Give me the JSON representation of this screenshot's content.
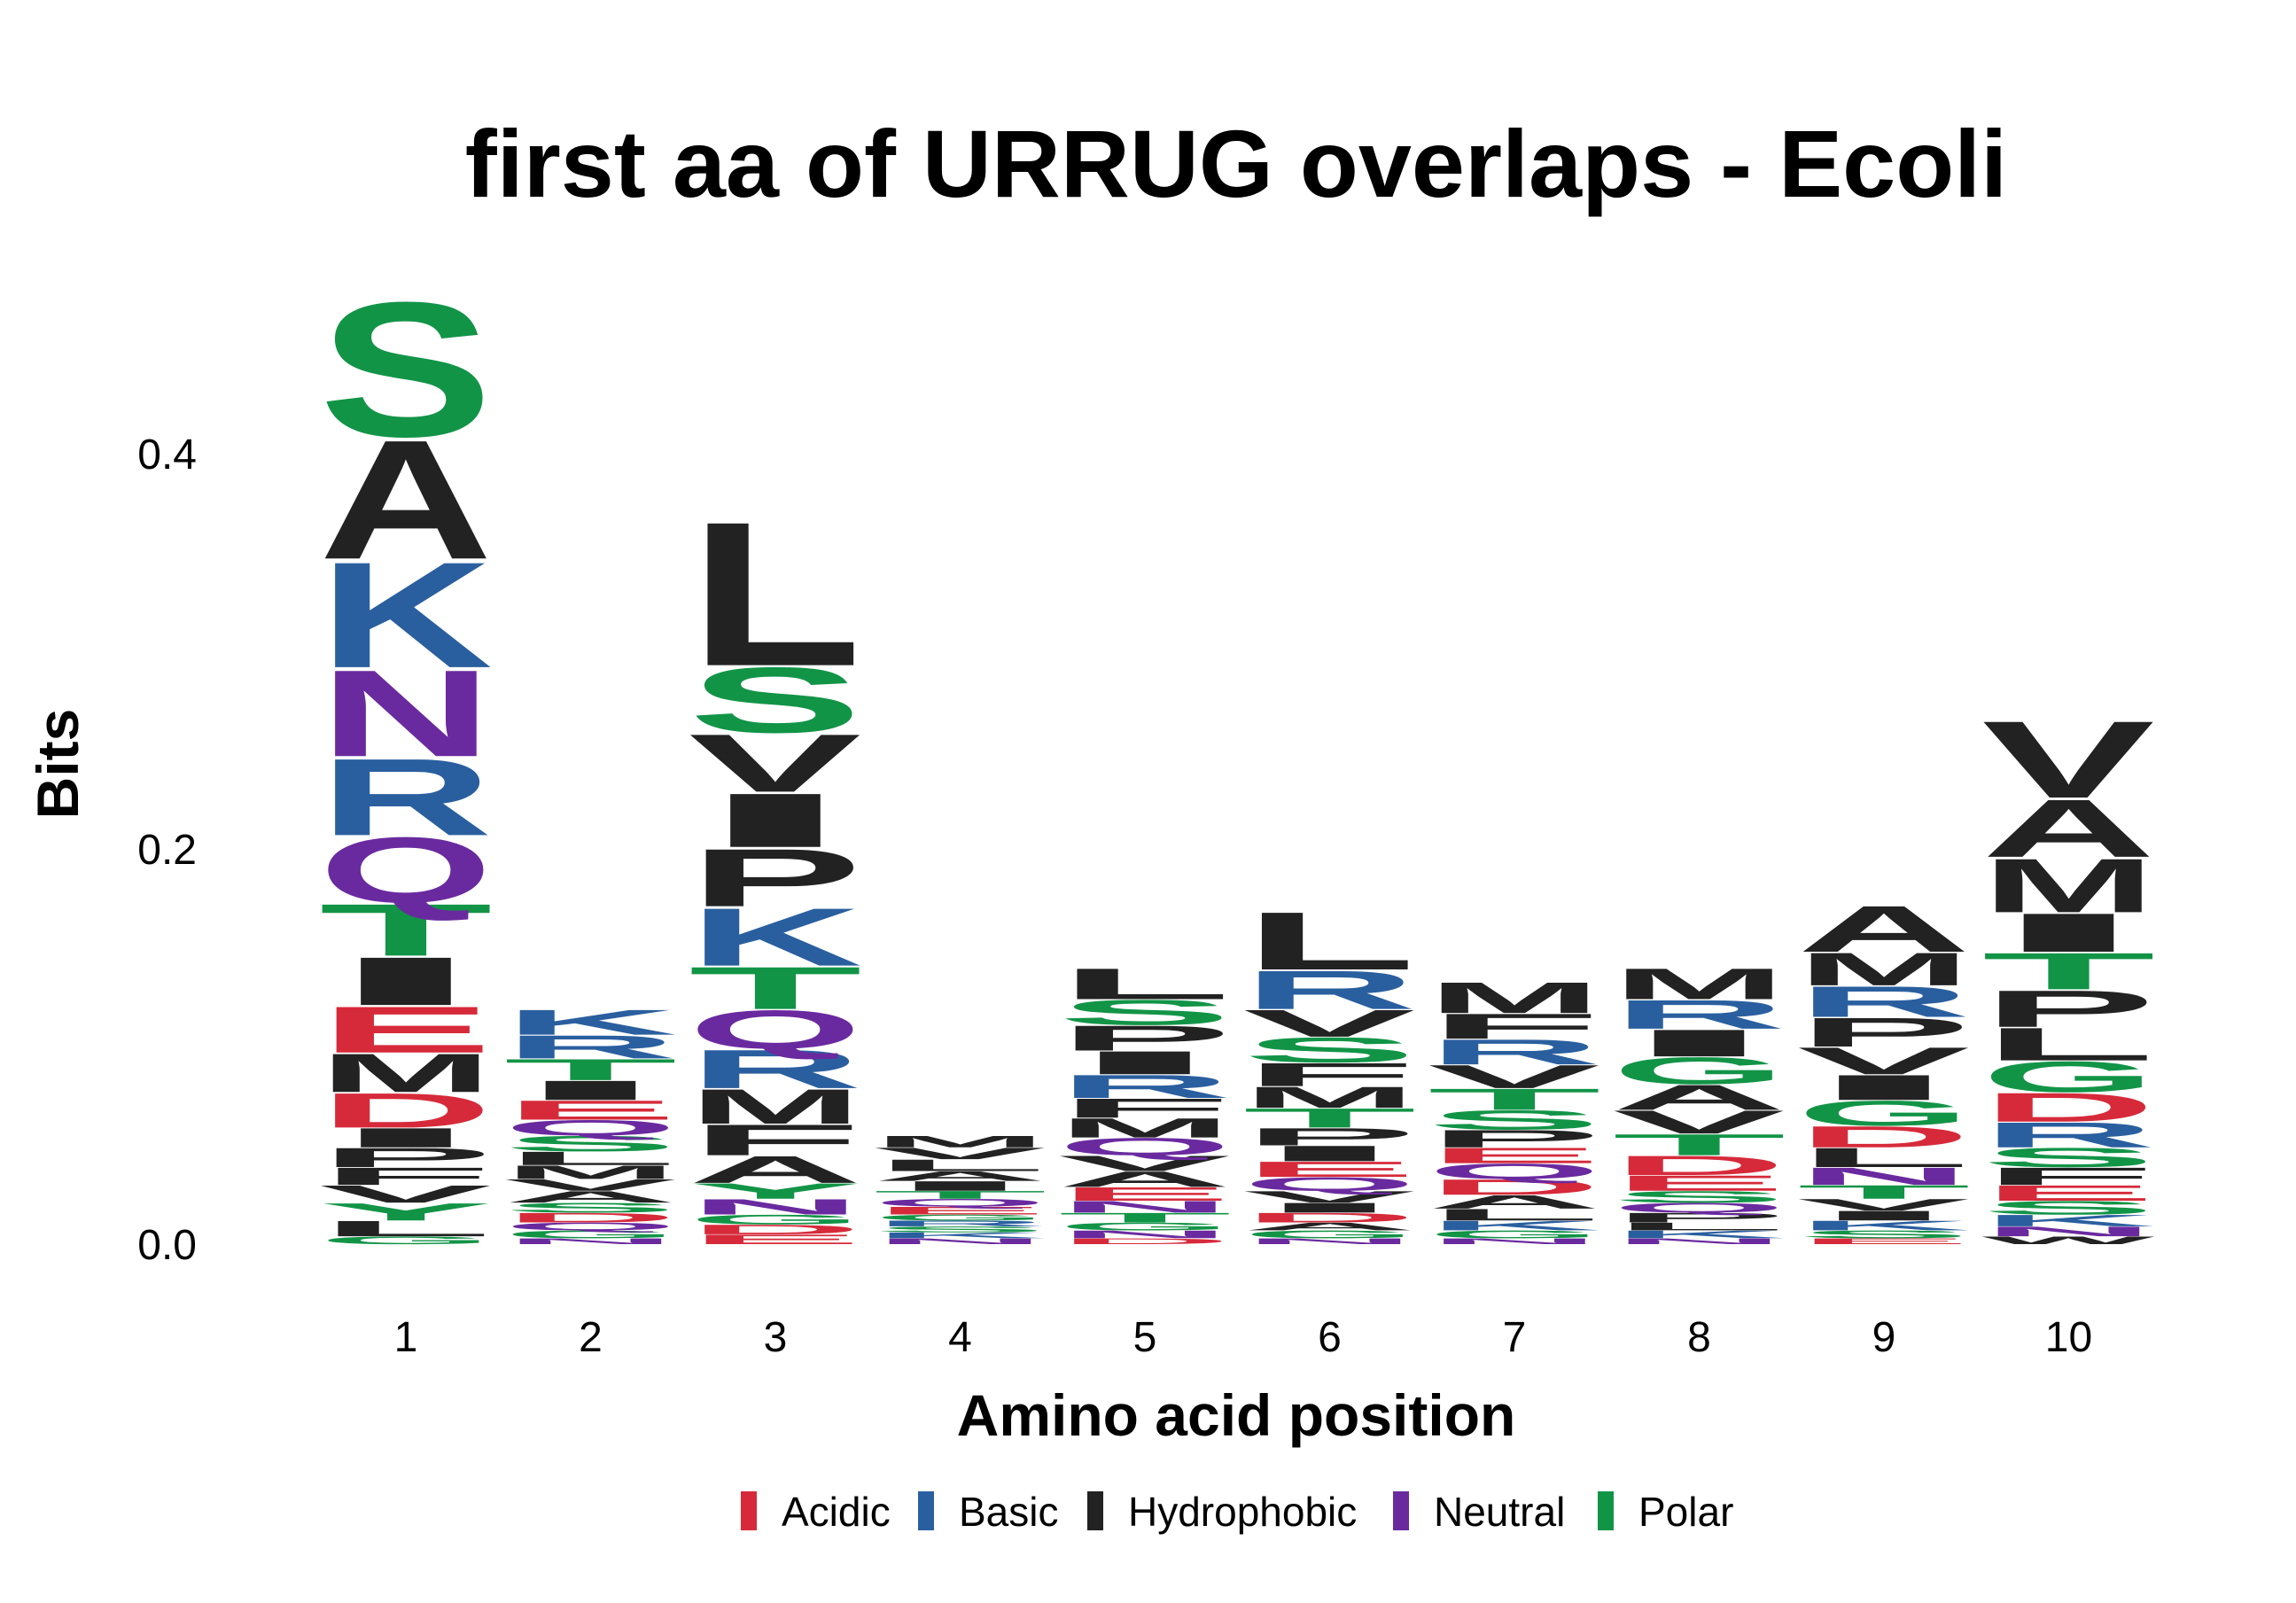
{
  "chart_data": {
    "type": "sequence-logo",
    "title": "first aa of URRUG overlaps - Ecoli",
    "xlabel": "Amino acid position",
    "ylabel": "Bits",
    "ylim": [
      0,
      0.5
    ],
    "yticks": [
      "0.0",
      "0.2",
      "0.4"
    ],
    "ytick_values": [
      0.0,
      0.2,
      0.4
    ],
    "categories": [
      "1",
      "2",
      "3",
      "4",
      "5",
      "6",
      "7",
      "8",
      "9",
      "10"
    ],
    "colors": {
      "Acidic": "#d62a3a",
      "Basic": "#2a5f9f",
      "Hydrophobic": "#222222",
      "Neutral": "#6a2a9f",
      "Polar": "#129447"
    },
    "legend": [
      "Acidic",
      "Basic",
      "Hydrophobic",
      "Neutral",
      "Polar"
    ],
    "legend_position": "bottom",
    "positions": [
      {
        "position": "1",
        "letters": [
          {
            "aa": "G",
            "bits": 0.004,
            "group": "Polar"
          },
          {
            "aa": "L",
            "bits": 0.008,
            "group": "Hydrophobic"
          },
          {
            "aa": "Y",
            "bits": 0.009,
            "group": "Polar"
          },
          {
            "aa": "V",
            "bits": 0.009,
            "group": "Hydrophobic"
          },
          {
            "aa": "F",
            "bits": 0.009,
            "group": "Hydrophobic"
          },
          {
            "aa": "P",
            "bits": 0.01,
            "group": "Hydrophobic"
          },
          {
            "aa": "I",
            "bits": 0.01,
            "group": "Hydrophobic"
          },
          {
            "aa": "D",
            "bits": 0.018,
            "group": "Acidic"
          },
          {
            "aa": "M",
            "bits": 0.02,
            "group": "Hydrophobic"
          },
          {
            "aa": "E",
            "bits": 0.024,
            "group": "Acidic"
          },
          {
            "aa": "I",
            "bits": 0.025,
            "group": "Hydrophobic"
          },
          {
            "aa": "T",
            "bits": 0.027,
            "group": "Polar"
          },
          {
            "aa": "Q",
            "bits": 0.034,
            "group": "Neutral"
          },
          {
            "aa": "R",
            "bits": 0.04,
            "group": "Basic"
          },
          {
            "aa": "N",
            "bits": 0.045,
            "group": "Neutral"
          },
          {
            "aa": "K",
            "bits": 0.055,
            "group": "Basic"
          },
          {
            "aa": "A",
            "bits": 0.062,
            "group": "Hydrophobic"
          },
          {
            "aa": "S",
            "bits": 0.07,
            "group": "Polar"
          }
        ]
      },
      {
        "position": "2",
        "letters": [
          {
            "aa": "N",
            "bits": 0.003,
            "group": "Neutral"
          },
          {
            "aa": "G",
            "bits": 0.004,
            "group": "Polar"
          },
          {
            "aa": "Q",
            "bits": 0.004,
            "group": "Neutral"
          },
          {
            "aa": "D",
            "bits": 0.005,
            "group": "Acidic"
          },
          {
            "aa": "S",
            "bits": 0.005,
            "group": "Polar"
          },
          {
            "aa": "A",
            "bits": 0.006,
            "group": "Hydrophobic"
          },
          {
            "aa": "V",
            "bits": 0.006,
            "group": "Hydrophobic"
          },
          {
            "aa": "M",
            "bits": 0.007,
            "group": "Hydrophobic"
          },
          {
            "aa": "L",
            "bits": 0.007,
            "group": "Hydrophobic"
          },
          {
            "aa": "S",
            "bits": 0.008,
            "group": "Polar"
          },
          {
            "aa": "Q",
            "bits": 0.008,
            "group": "Neutral"
          },
          {
            "aa": "E",
            "bits": 0.01,
            "group": "Acidic"
          },
          {
            "aa": "I",
            "bits": 0.01,
            "group": "Hydrophobic"
          },
          {
            "aa": "T",
            "bits": 0.011,
            "group": "Polar"
          },
          {
            "aa": "R",
            "bits": 0.012,
            "group": "Basic"
          },
          {
            "aa": "K",
            "bits": 0.013,
            "group": "Basic"
          }
        ]
      },
      {
        "position": "3",
        "letters": [
          {
            "aa": "E",
            "bits": 0.005,
            "group": "Acidic"
          },
          {
            "aa": "D",
            "bits": 0.005,
            "group": "Acidic"
          },
          {
            "aa": "G",
            "bits": 0.005,
            "group": "Polar"
          },
          {
            "aa": "N",
            "bits": 0.008,
            "group": "Neutral"
          },
          {
            "aa": "Y",
            "bits": 0.008,
            "group": "Polar"
          },
          {
            "aa": "A",
            "bits": 0.014,
            "group": "Hydrophobic"
          },
          {
            "aa": "F",
            "bits": 0.016,
            "group": "Hydrophobic"
          },
          {
            "aa": "M",
            "bits": 0.018,
            "group": "Hydrophobic"
          },
          {
            "aa": "R",
            "bits": 0.02,
            "group": "Basic"
          },
          {
            "aa": "Q",
            "bits": 0.02,
            "group": "Neutral"
          },
          {
            "aa": "T",
            "bits": 0.022,
            "group": "Polar"
          },
          {
            "aa": "K",
            "bits": 0.03,
            "group": "Basic"
          },
          {
            "aa": "P",
            "bits": 0.03,
            "group": "Hydrophobic"
          },
          {
            "aa": "I",
            "bits": 0.028,
            "group": "Hydrophobic"
          },
          {
            "aa": "V",
            "bits": 0.03,
            "group": "Hydrophobic"
          },
          {
            "aa": "S",
            "bits": 0.034,
            "group": "Polar"
          },
          {
            "aa": "L",
            "bits": 0.075,
            "group": "Hydrophobic"
          }
        ]
      },
      {
        "position": "4",
        "letters": [
          {
            "aa": "N",
            "bits": 0.003,
            "group": "Neutral"
          },
          {
            "aa": "K",
            "bits": 0.003,
            "group": "Basic"
          },
          {
            "aa": "S",
            "bits": 0.003,
            "group": "Polar"
          },
          {
            "aa": "R",
            "bits": 0.003,
            "group": "Basic"
          },
          {
            "aa": "G",
            "bits": 0.003,
            "group": "Polar"
          },
          {
            "aa": "E",
            "bits": 0.004,
            "group": "Acidic"
          },
          {
            "aa": "Q",
            "bits": 0.004,
            "group": "Neutral"
          },
          {
            "aa": "T",
            "bits": 0.004,
            "group": "Polar"
          },
          {
            "aa": "I",
            "bits": 0.005,
            "group": "Hydrophobic"
          },
          {
            "aa": "A",
            "bits": 0.005,
            "group": "Hydrophobic"
          },
          {
            "aa": "L",
            "bits": 0.006,
            "group": "Hydrophobic"
          },
          {
            "aa": "V",
            "bits": 0.006,
            "group": "Hydrophobic"
          },
          {
            "aa": "M",
            "bits": 0.006,
            "group": "Hydrophobic"
          }
        ]
      },
      {
        "position": "5",
        "letters": [
          {
            "aa": "D",
            "bits": 0.003,
            "group": "Acidic"
          },
          {
            "aa": "N",
            "bits": 0.004,
            "group": "Neutral"
          },
          {
            "aa": "G",
            "bits": 0.004,
            "group": "Polar"
          },
          {
            "aa": "T",
            "bits": 0.005,
            "group": "Polar"
          },
          {
            "aa": "N",
            "bits": 0.006,
            "group": "Neutral"
          },
          {
            "aa": "E",
            "bits": 0.007,
            "group": "Acidic"
          },
          {
            "aa": "A",
            "bits": 0.008,
            "group": "Hydrophobic"
          },
          {
            "aa": "V",
            "bits": 0.008,
            "group": "Hydrophobic"
          },
          {
            "aa": "Q",
            "bits": 0.009,
            "group": "Neutral"
          },
          {
            "aa": "M",
            "bits": 0.01,
            "group": "Hydrophobic"
          },
          {
            "aa": "F",
            "bits": 0.01,
            "group": "Hydrophobic"
          },
          {
            "aa": "R",
            "bits": 0.012,
            "group": "Basic"
          },
          {
            "aa": "I",
            "bits": 0.012,
            "group": "Hydrophobic"
          },
          {
            "aa": "P",
            "bits": 0.013,
            "group": "Hydrophobic"
          },
          {
            "aa": "S",
            "bits": 0.013,
            "group": "Polar"
          },
          {
            "aa": "L",
            "bits": 0.016,
            "group": "Hydrophobic"
          }
        ]
      },
      {
        "position": "6",
        "letters": [
          {
            "aa": "N",
            "bits": 0.003,
            "group": "Neutral"
          },
          {
            "aa": "G",
            "bits": 0.004,
            "group": "Polar"
          },
          {
            "aa": "A",
            "bits": 0.004,
            "group": "Hydrophobic"
          },
          {
            "aa": "D",
            "bits": 0.005,
            "group": "Acidic"
          },
          {
            "aa": "I",
            "bits": 0.005,
            "group": "Hydrophobic"
          },
          {
            "aa": "V",
            "bits": 0.006,
            "group": "Hydrophobic"
          },
          {
            "aa": "Q",
            "bits": 0.007,
            "group": "Neutral"
          },
          {
            "aa": "E",
            "bits": 0.008,
            "group": "Acidic"
          },
          {
            "aa": "I",
            "bits": 0.008,
            "group": "Hydrophobic"
          },
          {
            "aa": "P",
            "bits": 0.009,
            "group": "Hydrophobic"
          },
          {
            "aa": "T",
            "bits": 0.01,
            "group": "Polar"
          },
          {
            "aa": "M",
            "bits": 0.011,
            "group": "Hydrophobic"
          },
          {
            "aa": "F",
            "bits": 0.012,
            "group": "Hydrophobic"
          },
          {
            "aa": "S",
            "bits": 0.013,
            "group": "Polar"
          },
          {
            "aa": "V",
            "bits": 0.014,
            "group": "Hydrophobic"
          },
          {
            "aa": "R",
            "bits": 0.02,
            "group": "Basic"
          },
          {
            "aa": "L",
            "bits": 0.03,
            "group": "Hydrophobic"
          }
        ]
      },
      {
        "position": "7",
        "letters": [
          {
            "aa": "N",
            "bits": 0.003,
            "group": "Neutral"
          },
          {
            "aa": "G",
            "bits": 0.004,
            "group": "Polar"
          },
          {
            "aa": "K",
            "bits": 0.005,
            "group": "Basic"
          },
          {
            "aa": "L",
            "bits": 0.006,
            "group": "Hydrophobic"
          },
          {
            "aa": "A",
            "bits": 0.007,
            "group": "Hydrophobic"
          },
          {
            "aa": "D",
            "bits": 0.008,
            "group": "Acidic"
          },
          {
            "aa": "Q",
            "bits": 0.008,
            "group": "Neutral"
          },
          {
            "aa": "E",
            "bits": 0.008,
            "group": "Acidic"
          },
          {
            "aa": "P",
            "bits": 0.009,
            "group": "Hydrophobic"
          },
          {
            "aa": "S",
            "bits": 0.01,
            "group": "Polar"
          },
          {
            "aa": "T",
            "bits": 0.011,
            "group": "Polar"
          },
          {
            "aa": "V",
            "bits": 0.012,
            "group": "Hydrophobic"
          },
          {
            "aa": "R",
            "bits": 0.013,
            "group": "Basic"
          },
          {
            "aa": "F",
            "bits": 0.013,
            "group": "Hydrophobic"
          },
          {
            "aa": "M",
            "bits": 0.016,
            "group": "Hydrophobic"
          }
        ]
      },
      {
        "position": "8",
        "letters": [
          {
            "aa": "N",
            "bits": 0.003,
            "group": "Neutral"
          },
          {
            "aa": "K",
            "bits": 0.004,
            "group": "Basic"
          },
          {
            "aa": "L",
            "bits": 0.004,
            "group": "Hydrophobic"
          },
          {
            "aa": "P",
            "bits": 0.005,
            "group": "Hydrophobic"
          },
          {
            "aa": "Q",
            "bits": 0.005,
            "group": "Neutral"
          },
          {
            "aa": "S",
            "bits": 0.006,
            "group": "Polar"
          },
          {
            "aa": "E",
            "bits": 0.008,
            "group": "Acidic"
          },
          {
            "aa": "D",
            "bits": 0.01,
            "group": "Acidic"
          },
          {
            "aa": "T",
            "bits": 0.011,
            "group": "Polar"
          },
          {
            "aa": "V",
            "bits": 0.012,
            "group": "Hydrophobic"
          },
          {
            "aa": "A",
            "bits": 0.013,
            "group": "Hydrophobic"
          },
          {
            "aa": "G",
            "bits": 0.014,
            "group": "Polar"
          },
          {
            "aa": "I",
            "bits": 0.014,
            "group": "Hydrophobic"
          },
          {
            "aa": "R",
            "bits": 0.015,
            "group": "Basic"
          },
          {
            "aa": "M",
            "bits": 0.016,
            "group": "Hydrophobic"
          }
        ]
      },
      {
        "position": "9",
        "letters": [
          {
            "aa": "E",
            "bits": 0.003,
            "group": "Acidic"
          },
          {
            "aa": "S",
            "bits": 0.004,
            "group": "Polar"
          },
          {
            "aa": "K",
            "bits": 0.005,
            "group": "Basic"
          },
          {
            "aa": "I",
            "bits": 0.005,
            "group": "Hydrophobic"
          },
          {
            "aa": "V",
            "bits": 0.006,
            "group": "Hydrophobic"
          },
          {
            "aa": "T",
            "bits": 0.007,
            "group": "Polar"
          },
          {
            "aa": "N",
            "bits": 0.009,
            "group": "Neutral"
          },
          {
            "aa": "L",
            "bits": 0.01,
            "group": "Hydrophobic"
          },
          {
            "aa": "D",
            "bits": 0.011,
            "group": "Acidic"
          },
          {
            "aa": "G",
            "bits": 0.013,
            "group": "Polar"
          },
          {
            "aa": "I",
            "bits": 0.013,
            "group": "Hydrophobic"
          },
          {
            "aa": "V",
            "bits": 0.014,
            "group": "Hydrophobic"
          },
          {
            "aa": "P",
            "bits": 0.015,
            "group": "Hydrophobic"
          },
          {
            "aa": "R",
            "bits": 0.016,
            "group": "Basic"
          },
          {
            "aa": "M",
            "bits": 0.017,
            "group": "Hydrophobic"
          },
          {
            "aa": "A",
            "bits": 0.024,
            "group": "Hydrophobic"
          }
        ]
      },
      {
        "position": "10",
        "letters": [
          {
            "aa": "W",
            "bits": 0.004,
            "group": "Hydrophobic"
          },
          {
            "aa": "N",
            "bits": 0.005,
            "group": "Neutral"
          },
          {
            "aa": "K",
            "bits": 0.006,
            "group": "Basic"
          },
          {
            "aa": "S",
            "bits": 0.007,
            "group": "Polar"
          },
          {
            "aa": "E",
            "bits": 0.008,
            "group": "Acidic"
          },
          {
            "aa": "F",
            "bits": 0.009,
            "group": "Hydrophobic"
          },
          {
            "aa": "S",
            "bits": 0.01,
            "group": "Polar"
          },
          {
            "aa": "R",
            "bits": 0.013,
            "group": "Basic"
          },
          {
            "aa": "D",
            "bits": 0.015,
            "group": "Acidic"
          },
          {
            "aa": "G",
            "bits": 0.016,
            "group": "Polar"
          },
          {
            "aa": "L",
            "bits": 0.017,
            "group": "Hydrophobic"
          },
          {
            "aa": "P",
            "bits": 0.019,
            "group": "Hydrophobic"
          },
          {
            "aa": "T",
            "bits": 0.019,
            "group": "Polar"
          },
          {
            "aa": "I",
            "bits": 0.02,
            "group": "Hydrophobic"
          },
          {
            "aa": "M",
            "bits": 0.028,
            "group": "Hydrophobic"
          },
          {
            "aa": "A",
            "bits": 0.03,
            "group": "Hydrophobic"
          },
          {
            "aa": "V",
            "bits": 0.04,
            "group": "Hydrophobic"
          }
        ]
      }
    ]
  }
}
